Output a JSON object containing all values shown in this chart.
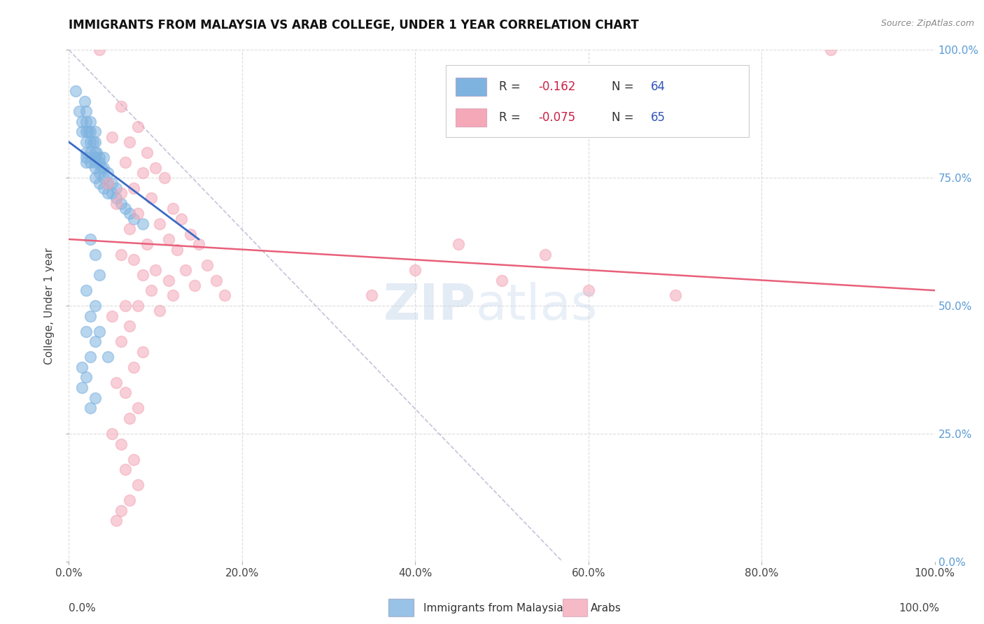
{
  "title": "IMMIGRANTS FROM MALAYSIA VS ARAB COLLEGE, UNDER 1 YEAR CORRELATION CHART",
  "source": "Source: ZipAtlas.com",
  "ylabel": "College, Under 1 year",
  "blue_color": "#7EB3E0",
  "pink_color": "#F4A8B8",
  "blue_line_color": "#3A6BC4",
  "pink_line_color": "#E8607A",
  "right_axis_color": "#5B9BD5",
  "watermark_color": "#C8D8EC",
  "grid_color": "#CCCCCC",
  "background_color": "#FFFFFF",
  "legend_box_color": "#DDDDDD",
  "blue_scatter": [
    [
      0.8,
      92
    ],
    [
      1.2,
      88
    ],
    [
      1.5,
      86
    ],
    [
      1.5,
      84
    ],
    [
      1.8,
      90
    ],
    [
      2.0,
      88
    ],
    [
      2.0,
      86
    ],
    [
      2.0,
      84
    ],
    [
      2.0,
      82
    ],
    [
      2.0,
      80
    ],
    [
      2.0,
      79
    ],
    [
      2.0,
      78
    ],
    [
      2.2,
      84
    ],
    [
      2.5,
      86
    ],
    [
      2.5,
      84
    ],
    [
      2.5,
      82
    ],
    [
      2.5,
      80
    ],
    [
      2.5,
      78
    ],
    [
      2.8,
      82
    ],
    [
      3.0,
      84
    ],
    [
      3.0,
      82
    ],
    [
      3.0,
      80
    ],
    [
      3.0,
      79
    ],
    [
      3.0,
      78
    ],
    [
      3.0,
      77
    ],
    [
      3.0,
      75
    ],
    [
      3.2,
      80
    ],
    [
      3.5,
      79
    ],
    [
      3.5,
      78
    ],
    [
      3.5,
      76
    ],
    [
      3.5,
      74
    ],
    [
      3.8,
      77
    ],
    [
      4.0,
      79
    ],
    [
      4.0,
      77
    ],
    [
      4.0,
      75
    ],
    [
      4.0,
      73
    ],
    [
      4.5,
      76
    ],
    [
      4.5,
      74
    ],
    [
      4.5,
      72
    ],
    [
      5.0,
      74
    ],
    [
      5.0,
      72
    ],
    [
      5.5,
      73
    ],
    [
      5.5,
      71
    ],
    [
      6.0,
      70
    ],
    [
      6.5,
      69
    ],
    [
      7.0,
      68
    ],
    [
      7.5,
      67
    ],
    [
      8.5,
      66
    ],
    [
      2.5,
      63
    ],
    [
      3.0,
      60
    ],
    [
      3.5,
      56
    ],
    [
      2.0,
      53
    ],
    [
      3.0,
      50
    ],
    [
      2.5,
      48
    ],
    [
      2.0,
      45
    ],
    [
      3.0,
      43
    ],
    [
      2.5,
      40
    ],
    [
      1.5,
      38
    ],
    [
      2.0,
      36
    ],
    [
      1.5,
      34
    ],
    [
      3.0,
      32
    ],
    [
      2.5,
      30
    ],
    [
      3.5,
      45
    ],
    [
      4.5,
      40
    ]
  ],
  "pink_scatter": [
    [
      3.5,
      100
    ],
    [
      6.0,
      89
    ],
    [
      8.0,
      85
    ],
    [
      5.0,
      83
    ],
    [
      7.0,
      82
    ],
    [
      9.0,
      80
    ],
    [
      6.5,
      78
    ],
    [
      10.0,
      77
    ],
    [
      8.5,
      76
    ],
    [
      11.0,
      75
    ],
    [
      4.5,
      74
    ],
    [
      7.5,
      73
    ],
    [
      6.0,
      72
    ],
    [
      9.5,
      71
    ],
    [
      5.5,
      70
    ],
    [
      12.0,
      69
    ],
    [
      8.0,
      68
    ],
    [
      13.0,
      67
    ],
    [
      10.5,
      66
    ],
    [
      7.0,
      65
    ],
    [
      14.0,
      64
    ],
    [
      11.5,
      63
    ],
    [
      9.0,
      62
    ],
    [
      15.0,
      62
    ],
    [
      12.5,
      61
    ],
    [
      6.0,
      60
    ],
    [
      7.5,
      59
    ],
    [
      16.0,
      58
    ],
    [
      10.0,
      57
    ],
    [
      13.5,
      57
    ],
    [
      8.5,
      56
    ],
    [
      17.0,
      55
    ],
    [
      11.5,
      55
    ],
    [
      14.5,
      54
    ],
    [
      9.5,
      53
    ],
    [
      18.0,
      52
    ],
    [
      12.0,
      52
    ],
    [
      6.5,
      50
    ],
    [
      8.0,
      50
    ],
    [
      10.5,
      49
    ],
    [
      5.0,
      48
    ],
    [
      7.0,
      46
    ],
    [
      6.0,
      43
    ],
    [
      8.5,
      41
    ],
    [
      7.5,
      38
    ],
    [
      5.5,
      35
    ],
    [
      6.5,
      33
    ],
    [
      8.0,
      30
    ],
    [
      7.0,
      28
    ],
    [
      5.0,
      25
    ],
    [
      6.0,
      23
    ],
    [
      7.5,
      20
    ],
    [
      6.5,
      18
    ],
    [
      8.0,
      15
    ],
    [
      7.0,
      12
    ],
    [
      6.0,
      10
    ],
    [
      5.5,
      8
    ],
    [
      88.0,
      100
    ],
    [
      45.0,
      62
    ],
    [
      55.0,
      60
    ],
    [
      40.0,
      57
    ],
    [
      50.0,
      55
    ],
    [
      35.0,
      52
    ],
    [
      60.0,
      53
    ],
    [
      70.0,
      52
    ]
  ],
  "blue_line_x": [
    0,
    15
  ],
  "blue_line_y": [
    82,
    63
  ],
  "pink_line_x": [
    0,
    100
  ],
  "pink_line_y": [
    63,
    53
  ],
  "dash_line_x": [
    0,
    57
  ],
  "dash_line_y": [
    100,
    0
  ],
  "xlim": [
    0,
    100
  ],
  "ylim": [
    0,
    100
  ]
}
